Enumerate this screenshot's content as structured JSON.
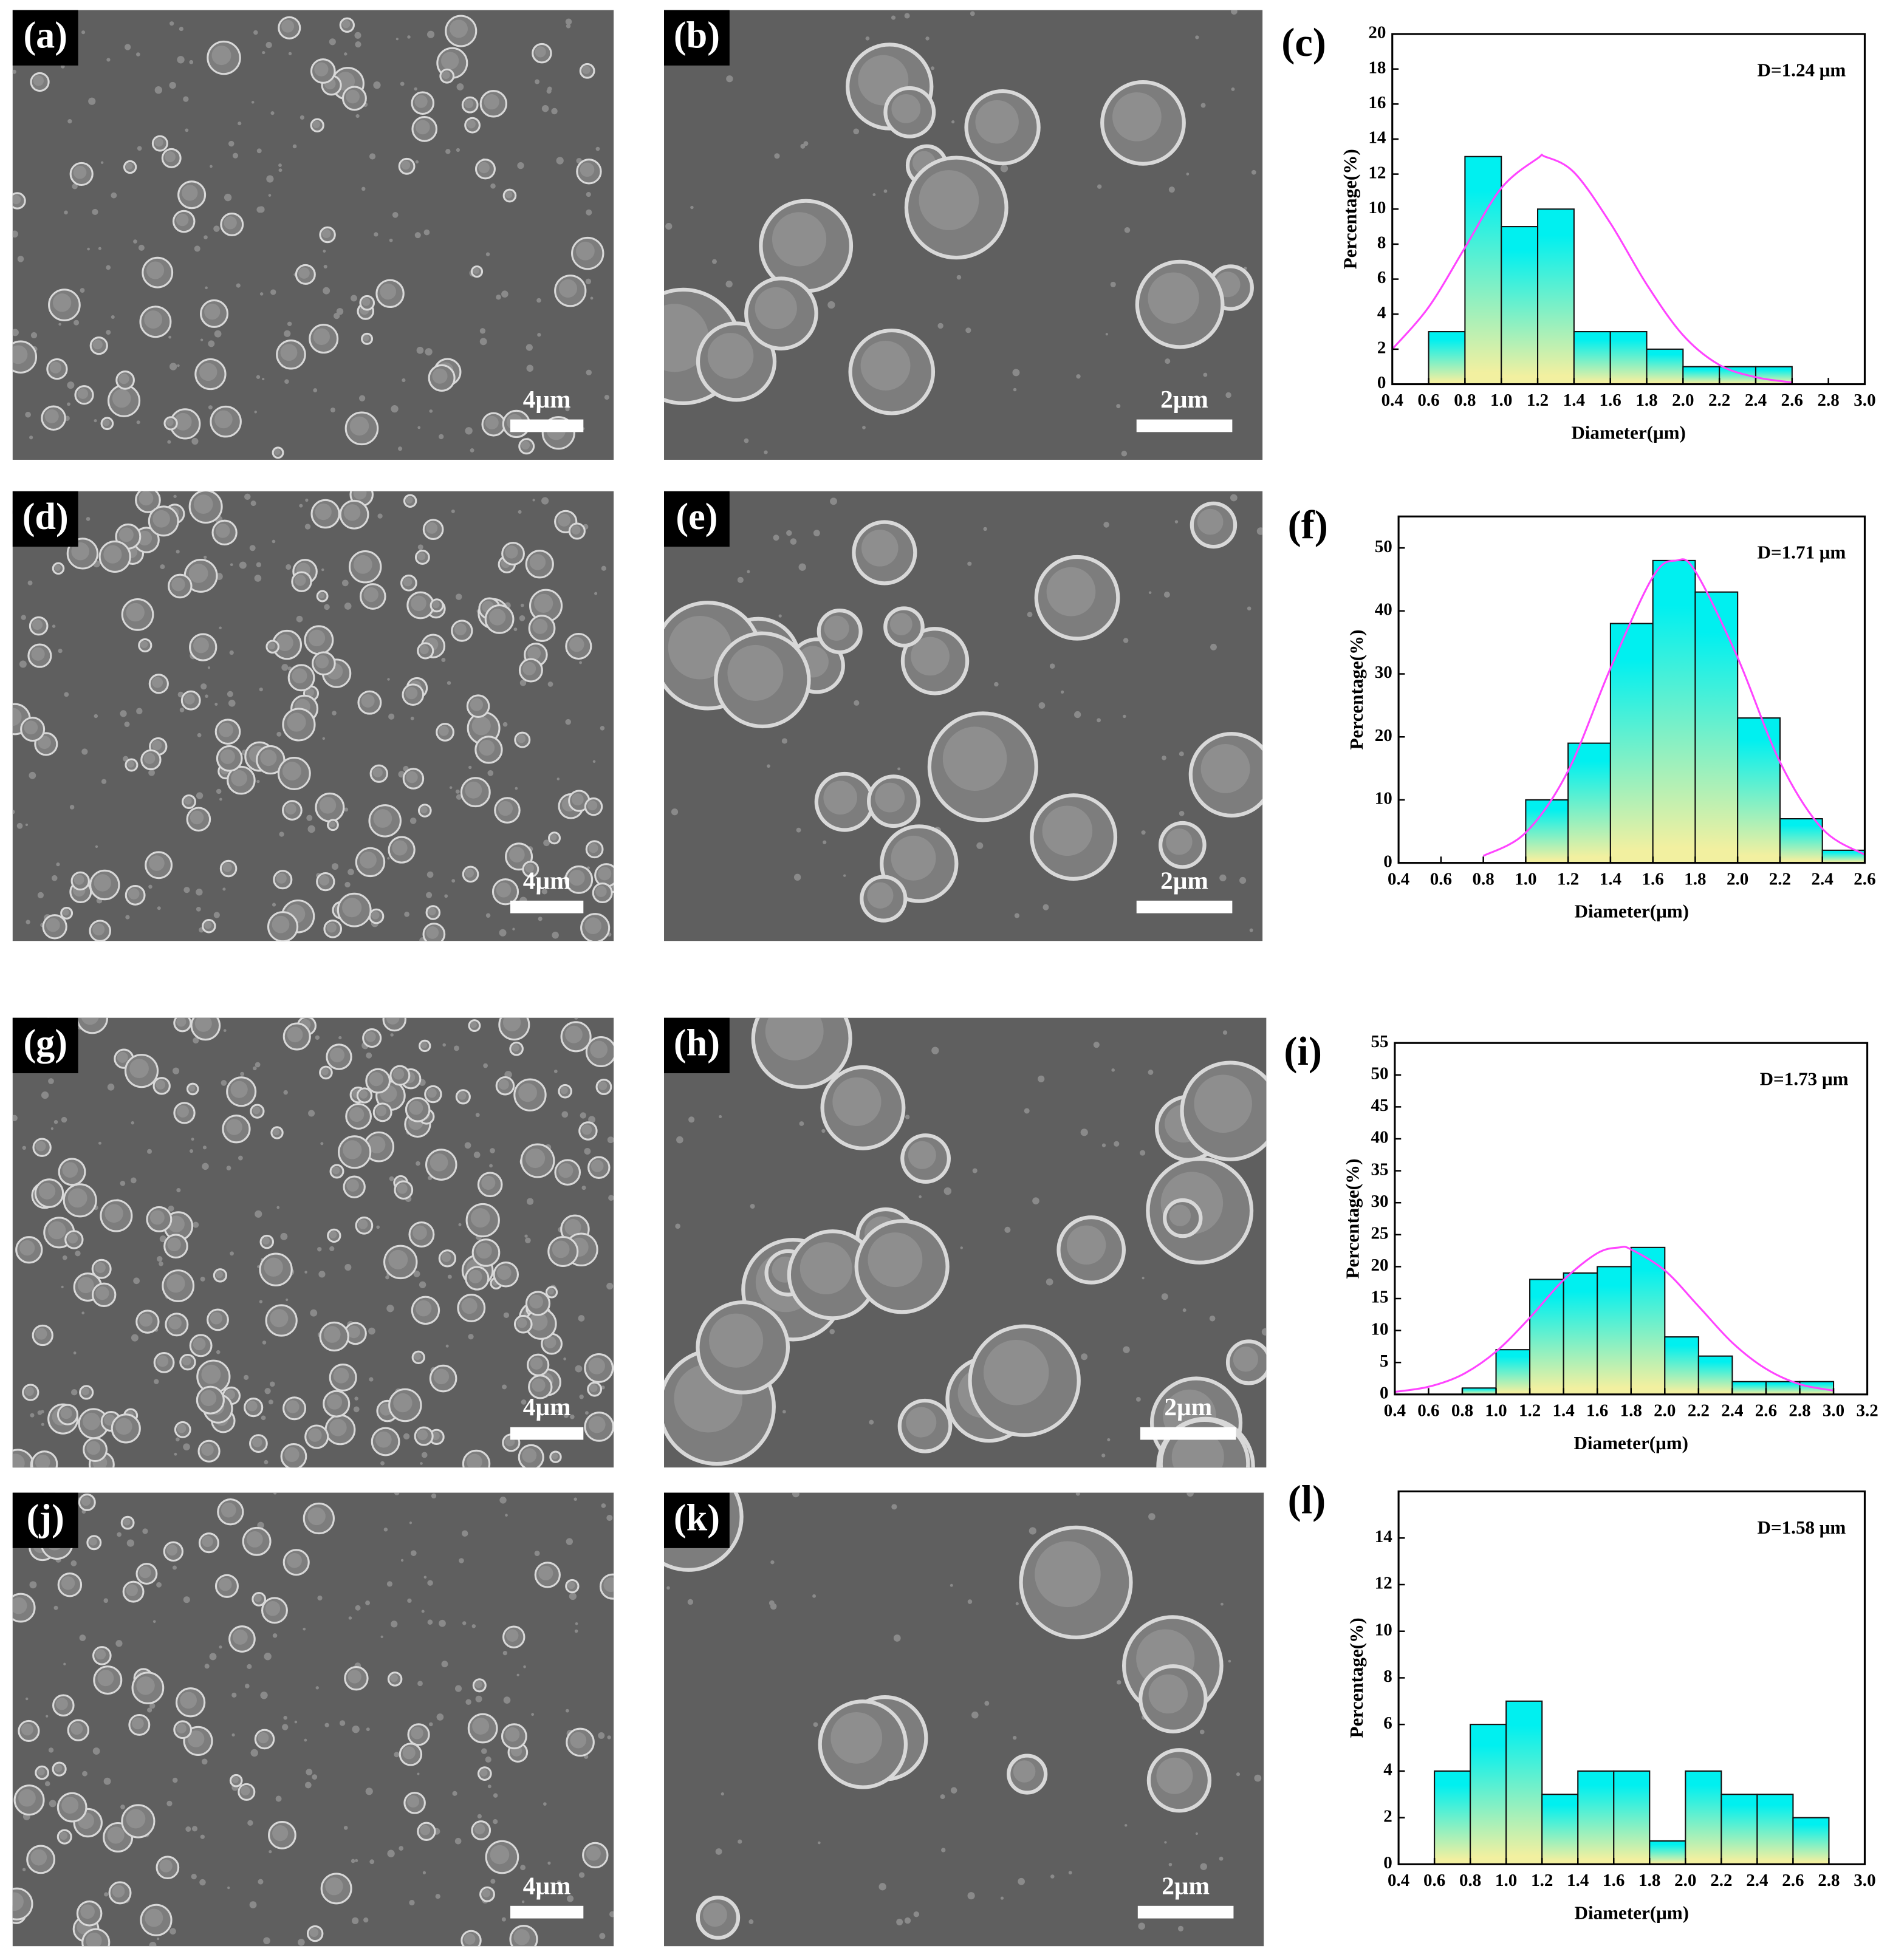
{
  "panels": [
    {
      "label": "(a)",
      "scale_bar": "4μm"
    },
    {
      "label": "(b)",
      "scale_bar": "2μm"
    },
    {
      "label": "(d)",
      "scale_bar": "4μm"
    },
    {
      "label": "(e)",
      "scale_bar": "2μm"
    },
    {
      "label": "(g)",
      "scale_bar": "4μm"
    },
    {
      "label": "(h)",
      "scale_bar": "2μm"
    },
    {
      "label": "(j)",
      "scale_bar": "4μm"
    },
    {
      "label": "(k)",
      "scale_bar": "2μm"
    }
  ],
  "chart_data": [
    {
      "type": "histogram",
      "title": "(c)",
      "annotation": "D=1.24 μm",
      "xlabel": "Diameter(μm)",
      "ylabel": "Percentage(%)",
      "bins": [
        0.6,
        0.8,
        1.0,
        1.2,
        1.4,
        1.6,
        1.8,
        2.0,
        2.2,
        2.4,
        2.6
      ],
      "values": [
        3,
        13,
        9,
        10,
        3,
        3,
        2,
        1,
        1,
        1
      ],
      "bar_gradient": [
        "#00f0f0",
        "#f2f0a0"
      ],
      "fit": {
        "color": "#ff44ff",
        "x": [
          0.4,
          0.6,
          0.8,
          1.0,
          1.2,
          1.24,
          1.4,
          1.6,
          1.8,
          2.0,
          2.2,
          2.4,
          2.6
        ],
        "y": [
          2.0,
          4.4,
          7.8,
          11.2,
          12.9,
          13,
          12.1,
          9.2,
          5.7,
          2.8,
          1.1,
          0.4,
          0.1
        ]
      },
      "xlim": [
        0.4,
        3.0
      ],
      "xticks": [
        0.4,
        0.6,
        0.8,
        {
          "value": 1.0,
          "label": "1.0"
        },
        1.2,
        1.4,
        1.6,
        1.8,
        {
          "value": 2.0,
          "label": "2.0"
        },
        2.2,
        2.4,
        2.6,
        2.8,
        {
          "value": 3.0,
          "label": "3.0"
        }
      ],
      "ylim": [
        0,
        20
      ],
      "yticks": [
        0,
        2,
        4,
        6,
        8,
        10,
        12,
        14,
        16,
        18,
        20
      ]
    },
    {
      "type": "histogram",
      "title": "(f)",
      "annotation": "D=1.71 μm",
      "xlabel": "Diameter(μm)",
      "ylabel": "Percentage(%)",
      "bins": [
        1.0,
        1.2,
        1.4,
        1.6,
        1.8,
        2.0,
        2.2,
        2.4,
        2.6
      ],
      "values": [
        10,
        19,
        38,
        48,
        43,
        23,
        7,
        2
      ],
      "bar_gradient": [
        "#00f0f0",
        "#f2f0a0"
      ],
      "fit": {
        "color": "#ff44ff",
        "x": [
          0.8,
          1.0,
          1.2,
          1.4,
          1.6,
          1.71,
          1.8,
          2.0,
          2.2,
          2.4,
          2.6
        ],
        "y": [
          1.1,
          4.8,
          14.6,
          30.9,
          45.4,
          48,
          46.3,
          32.6,
          16.0,
          5.4,
          1.3
        ]
      },
      "xlim": [
        0.4,
        2.6
      ],
      "xticks": [
        0.4,
        0.6,
        0.8,
        {
          "value": 1.0,
          "label": "1.0"
        },
        1.2,
        1.4,
        1.6,
        1.8,
        {
          "value": 2.0,
          "label": "2.0"
        },
        2.2,
        2.4,
        2.6
      ],
      "ylim": [
        0,
        55
      ],
      "yticks": [
        0,
        10,
        20,
        30,
        40,
        50
      ]
    },
    {
      "type": "histogram",
      "title": "(i)",
      "annotation": "D=1.73 μm",
      "xlabel": "Diameter(μm)",
      "ylabel": "Percentage(%)",
      "bins": [
        0.8,
        1.0,
        1.2,
        1.4,
        1.6,
        1.8,
        2.0,
        2.2,
        2.4,
        2.6,
        2.8,
        3.0
      ],
      "values": [
        1,
        7,
        18,
        19,
        20,
        23,
        9,
        6,
        2,
        2,
        2
      ],
      "bar_gradient": [
        "#00f0f0",
        "#f2f0a0"
      ],
      "fit": {
        "color": "#ff44ff",
        "x": [
          0.4,
          0.6,
          0.8,
          1.0,
          1.2,
          1.4,
          1.6,
          1.73,
          1.8,
          2.0,
          2.2,
          2.4,
          2.6,
          2.8,
          3.0
        ],
        "y": [
          0.4,
          1.2,
          3.1,
          6.7,
          12.0,
          17.9,
          22.1,
          23,
          22.7,
          19.4,
          13.8,
          8.1,
          4.0,
          1.6,
          0.6
        ]
      },
      "xlim": [
        0.4,
        3.2
      ],
      "xticks": [
        0.4,
        0.6,
        0.8,
        {
          "value": 1.0,
          "label": "1.0"
        },
        1.2,
        1.4,
        1.6,
        1.8,
        {
          "value": 2.0,
          "label": "2.0"
        },
        2.2,
        2.4,
        2.6,
        2.8,
        {
          "value": 3.0,
          "label": "3.0"
        },
        3.2
      ],
      "ylim": [
        0,
        55
      ],
      "yticks": [
        0,
        5,
        10,
        15,
        20,
        25,
        30,
        35,
        40,
        45,
        50,
        55
      ]
    },
    {
      "type": "histogram",
      "title": "(l)",
      "annotation": "D=1.58 μm",
      "xlabel": "Diameter(μm)",
      "ylabel": "Percentage(%)",
      "bins": [
        0.6,
        0.8,
        1.0,
        1.2,
        1.4,
        1.6,
        1.8,
        2.0,
        2.2,
        2.4,
        2.6,
        2.8
      ],
      "values": [
        4,
        6,
        7,
        3,
        4,
        4,
        1,
        4,
        3,
        3,
        2
      ],
      "bar_gradient": [
        "#00f0f0",
        "#f2f0a0"
      ],
      "xlim": [
        0.4,
        3.0
      ],
      "xticks": [
        0.4,
        0.6,
        0.8,
        {
          "value": 1.0,
          "label": "1.0"
        },
        1.2,
        1.4,
        1.6,
        1.8,
        {
          "value": 2.0,
          "label": "2.0"
        },
        2.2,
        2.4,
        2.6,
        2.8,
        {
          "value": 3.0,
          "label": "3.0"
        }
      ],
      "ylim": [
        0,
        16
      ],
      "yticks": [
        0,
        2,
        4,
        6,
        8,
        10,
        12,
        14
      ]
    }
  ]
}
